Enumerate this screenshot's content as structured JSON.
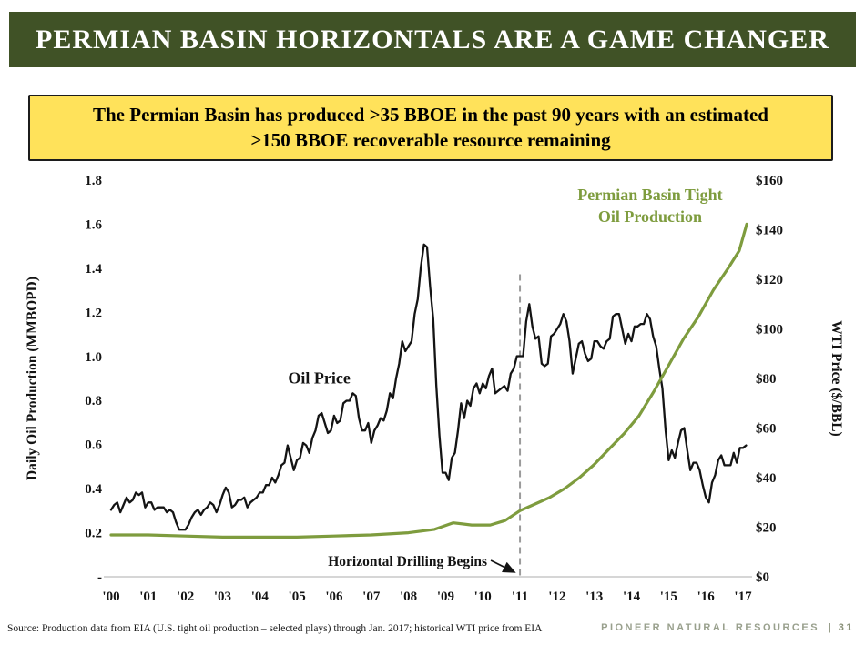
{
  "header": {
    "title": "PERMIAN BASIN HORIZONTALS ARE A GAME CHANGER"
  },
  "callout": {
    "text": "The Permian Basin has produced >35 BBOE in the past 90 years with an estimated >150 BBOE recoverable resource remaining"
  },
  "footer": {
    "source": "Source: Production data from EIA (U.S. tight oil production – selected plays) through Jan. 2017; historical WTI price from EIA",
    "brand": "PIONEER NATURAL RESOURCES",
    "page": "| 31"
  },
  "chart_data": {
    "type": "line",
    "left_axis": {
      "label": "Daily Oil Production (MMBOPD)",
      "min": 0,
      "max": 1.8,
      "tick_values": [
        1.8,
        1.6,
        1.4,
        1.2,
        1.0,
        0.8,
        0.6,
        0.4,
        0.2,
        0
      ],
      "tick_labels": [
        "1.8",
        "1.6",
        "1.4",
        "1.2",
        "1.0",
        "0.8",
        "0.6",
        "0.4",
        "0.2",
        "-"
      ]
    },
    "right_axis": {
      "label": "WTI Price ($/BBL)",
      "min": 0,
      "max": 160,
      "tick_values": [
        160,
        140,
        120,
        100,
        80,
        60,
        40,
        20,
        0
      ],
      "tick_labels": [
        "$160",
        "$140",
        "$120",
        "$100",
        "$80",
        "$60",
        "$40",
        "$20",
        "$0"
      ]
    },
    "x_axis": {
      "start_year": 2000,
      "tick_labels": [
        "'00",
        "'01",
        "'02",
        "'03",
        "'04",
        "'05",
        "'06",
        "'07",
        "'08",
        "'09",
        "'10",
        "'11",
        "'12",
        "'13",
        "'14",
        "'15",
        "'16",
        "'17"
      ]
    },
    "annotations": {
      "oil_price_label": {
        "text": "Oil Price",
        "x": 2005.6,
        "price": 78
      },
      "production_label": {
        "lines": [
          "Permian Basin Tight",
          "Oil Production"
        ],
        "x": 2014.5,
        "top_price": 152
      },
      "event": {
        "text": "Horizontal Drilling Begins",
        "x": 2011,
        "line_top_price": 122
      }
    },
    "series": [
      {
        "name": "Oil Price",
        "axis": "right",
        "color": "#141414",
        "stroke_width": 2.3,
        "x_start": 2000,
        "x_step": 0.0833333,
        "values": [
          27,
          29,
          30,
          26,
          29,
          32,
          30,
          31,
          34,
          33,
          34,
          28,
          30,
          30,
          27,
          28,
          28,
          28,
          26,
          27,
          26,
          22,
          19,
          19,
          19,
          21,
          24,
          26,
          27,
          25,
          27,
          28,
          30,
          29,
          26,
          29,
          33,
          36,
          34,
          28,
          29,
          31,
          31,
          32,
          28,
          30,
          31,
          32,
          34,
          34,
          37,
          37,
          40,
          38,
          41,
          45,
          46,
          53,
          48,
          43,
          47,
          48,
          54,
          53,
          50,
          56,
          59,
          65,
          66,
          62,
          58,
          59,
          65,
          62,
          63,
          70,
          71,
          71,
          74,
          73,
          64,
          59,
          59,
          62,
          54,
          59,
          61,
          64,
          63,
          67,
          74,
          72,
          80,
          86,
          95,
          91,
          93,
          95,
          106,
          112,
          125,
          134,
          133,
          117,
          104,
          77,
          57,
          42,
          42,
          39,
          48,
          50,
          59,
          70,
          64,
          71,
          69,
          76,
          78,
          74,
          78,
          76,
          81,
          84,
          74,
          75,
          76,
          77,
          75,
          82,
          84,
          89,
          89,
          89,
          103,
          110,
          101,
          96,
          97,
          86,
          85,
          86,
          97,
          98,
          100,
          102,
          106,
          103,
          95,
          82,
          88,
          94,
          95,
          90,
          87,
          88,
          95,
          95,
          93,
          92,
          95,
          96,
          105,
          106,
          106,
          100,
          94,
          98,
          95,
          101,
          101,
          102,
          102,
          106,
          104,
          97,
          93,
          84,
          76,
          59,
          47,
          51,
          48,
          54,
          59,
          60,
          51,
          43,
          46,
          46,
          43,
          37,
          32,
          30,
          38,
          41,
          47,
          49,
          45,
          45,
          45,
          50,
          46,
          52,
          52,
          53
        ]
      },
      {
        "name": "Permian Basin Tight Oil Production",
        "axis": "left",
        "color": "#7e9c3e",
        "stroke_width": 3.2,
        "x": [
          2000,
          2001,
          2002,
          2003,
          2004,
          2005,
          2006,
          2007,
          2008,
          2008.7,
          2009.2,
          2009.7,
          2010.2,
          2010.6,
          2011,
          2011.4,
          2011.8,
          2012.2,
          2012.6,
          2013,
          2013.4,
          2013.8,
          2014.2,
          2014.6,
          2015,
          2015.4,
          2015.8,
          2016.2,
          2016.6,
          2016.9,
          2017.1
        ],
        "values": [
          0.19,
          0.19,
          0.185,
          0.18,
          0.18,
          0.18,
          0.185,
          0.19,
          0.2,
          0.215,
          0.245,
          0.235,
          0.235,
          0.255,
          0.3,
          0.33,
          0.36,
          0.4,
          0.45,
          0.51,
          0.58,
          0.65,
          0.73,
          0.84,
          0.96,
          1.08,
          1.18,
          1.3,
          1.4,
          1.48,
          1.6
        ]
      }
    ]
  }
}
